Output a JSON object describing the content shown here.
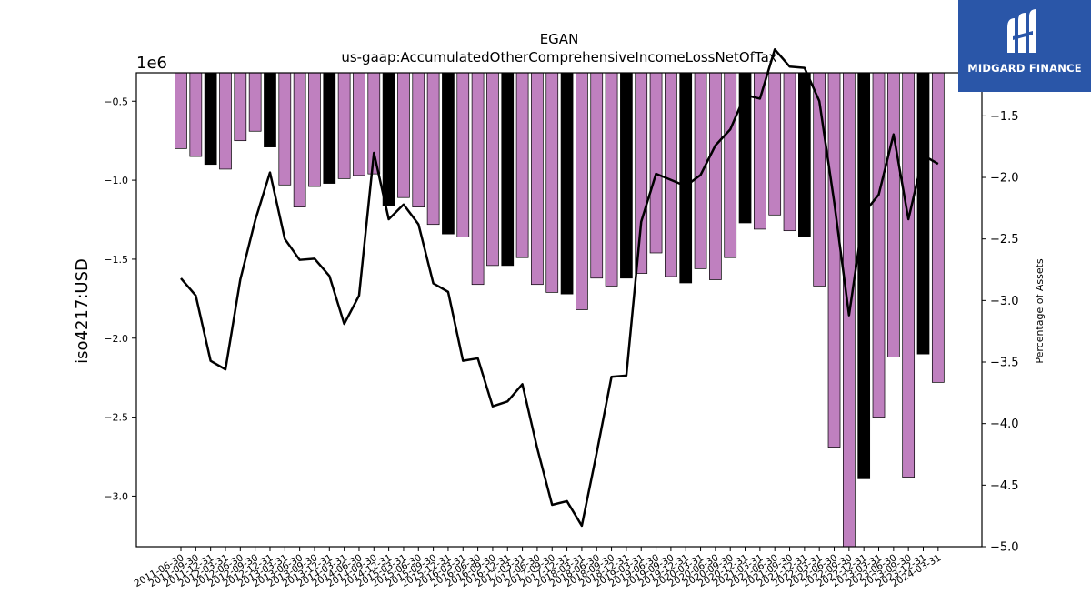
{
  "title": "EGAN",
  "subtitle": "us-gaap:AccumulatedOtherComprehensiveIncomeLossNetOfTax",
  "logo": {
    "text": "MIDGARD FINANCE",
    "background": "#2a56a8"
  },
  "colors": {
    "bar_default": "#bf80bf",
    "bar_highlight": "#000000",
    "line": "#000000"
  },
  "chart_data": {
    "type": "bar",
    "ylabel": "iso4217:USD",
    "y_offset_label": "1e6",
    "y2label": "Percentage of Assets",
    "ylim": [
      -3.32,
      -0.32
    ],
    "y2lim": [
      -5.0,
      -1.15
    ],
    "yticks": [
      "−0.5",
      "−1.0",
      "−1.5",
      "−2.0",
      "−2.5",
      "−3.0"
    ],
    "yticks_values": [
      -0.5,
      -1.0,
      -1.5,
      -2.0,
      -2.5,
      -3.0
    ],
    "y2ticks": [
      "−1.5",
      "−2.0",
      "−2.5",
      "−3.0",
      "−3.5",
      "−4.0",
      "−4.5",
      "−5.0"
    ],
    "y2ticks_values": [
      -1.5,
      -2.0,
      -2.5,
      -3.0,
      -3.5,
      -4.0,
      -4.5,
      -5.0
    ],
    "grid": false,
    "categories": [
      "2011-06-30",
      "2011-09-30",
      "2011-12-31",
      "2012-03-31",
      "2012-06-30",
      "2012-09-30",
      "2012-12-31",
      "2013-03-31",
      "2013-06-30",
      "2013-09-30",
      "2013-12-31",
      "2014-03-31",
      "2014-06-30",
      "2014-09-30",
      "2014-12-31",
      "2015-03-31",
      "2015-06-30",
      "2015-09-30",
      "2015-12-31",
      "2016-03-31",
      "2016-06-30",
      "2016-09-30",
      "2016-12-31",
      "2017-03-31",
      "2017-06-30",
      "2017-09-30",
      "2017-12-31",
      "2018-03-31",
      "2018-06-30",
      "2018-09-30",
      "2018-12-31",
      "2019-03-31",
      "2019-06-30",
      "2019-09-30",
      "2019-12-31",
      "2020-03-31",
      "2020-06-30",
      "2020-09-30",
      "2020-12-31",
      "2021-03-31",
      "2021-06-30",
      "2021-09-30",
      "2021-12-31",
      "2022-03-31",
      "2022-06-30",
      "2022-09-30",
      "2022-12-31",
      "2023-03-31",
      "2023-06-30",
      "2023-09-30",
      "2023-12-31",
      "2024-03-31"
    ],
    "series": [
      {
        "type": "bar",
        "values": [
          -0.8,
          -0.85,
          -0.9,
          -0.93,
          -0.75,
          -0.69,
          -0.79,
          -1.03,
          -1.17,
          -1.04,
          -1.02,
          -0.99,
          -0.97,
          -0.96,
          -1.16,
          -1.11,
          -1.17,
          -1.28,
          -1.34,
          -1.36,
          -1.66,
          -1.54,
          -1.54,
          -1.49,
          -1.66,
          -1.71,
          -1.72,
          -1.82,
          -1.62,
          -1.67,
          -1.62,
          -1.59,
          -1.46,
          -1.61,
          -1.65,
          -1.56,
          -1.63,
          -1.49,
          -1.27,
          -1.31,
          -1.22,
          -1.32,
          -1.36,
          -1.67,
          -2.69,
          -3.32,
          -2.89,
          -2.5,
          -2.12,
          -2.88,
          -2.1,
          -2.28
        ],
        "highlight": [
          2,
          6,
          10,
          14,
          18,
          22,
          26,
          30,
          34,
          38,
          42,
          46,
          50
        ]
      },
      {
        "type": "line",
        "axis": "right",
        "values": [
          -2.82,
          -2.96,
          -3.49,
          -3.56,
          -2.83,
          -2.35,
          -1.96,
          -2.5,
          -2.67,
          -2.66,
          -2.8,
          -3.19,
          -2.96,
          -1.8,
          -2.34,
          -2.22,
          -2.38,
          -2.86,
          -2.93,
          -3.49,
          -3.47,
          -3.86,
          -3.82,
          -3.68,
          -4.2,
          -4.66,
          -4.63,
          -4.83,
          -4.24,
          -3.62,
          -3.61,
          -2.36,
          -1.97,
          -2.02,
          -2.07,
          -1.98,
          -1.74,
          -1.61,
          -1.33,
          -1.36,
          -0.96,
          -1.1,
          -1.11,
          -1.38,
          -2.2,
          -3.12,
          -2.29,
          -2.14,
          -1.65,
          -2.34,
          -1.82,
          -1.89
        ]
      }
    ]
  }
}
